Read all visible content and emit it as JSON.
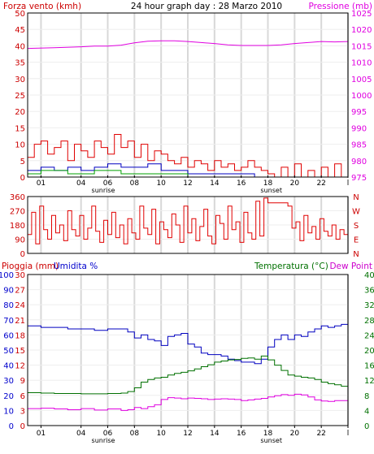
{
  "colors": {
    "red": "#e00000",
    "magenta": "#e000e0",
    "blue": "#0000c0",
    "green": "#007000",
    "darkgreen": "#00a000",
    "label_red": "#cc0000",
    "label_blue": "#0000cc",
    "grid": "#d8d8d8",
    "frame": "#000000"
  },
  "time_ticks": [
    "01",
    "04",
    "06",
    "08",
    "10",
    "12",
    "14",
    "16",
    "18",
    "20",
    "22",
    "l"
  ],
  "sun_labels": {
    "sunrise": "sunrise",
    "sunset": "sunset"
  },
  "chart_data": [
    {
      "type": "line",
      "title": "24 hour graph day : 28 Marzo 2010",
      "left_axis_label": "Forza vento (kmh)",
      "right_axis_label": "Pressione (mb)",
      "left_ticks": [
        "50",
        "45",
        "40",
        "35",
        "30",
        "25",
        "20",
        "15",
        "10",
        "5",
        "0"
      ],
      "right_ticks": [
        "1025",
        "1020",
        "1015",
        "1010",
        "1005",
        "1000",
        "995",
        "990",
        "985",
        "980",
        "975"
      ],
      "ylim_left": [
        0,
        50
      ],
      "ylim_right": [
        975,
        1025
      ],
      "x_range_hours": [
        0,
        24
      ],
      "series": [
        {
          "key": "pressure",
          "color": "magenta",
          "axis": "right",
          "x": [
            0,
            2,
            4,
            5,
            6,
            7,
            8,
            9,
            10,
            11,
            12,
            13,
            14,
            15,
            16,
            17,
            18,
            19,
            20,
            21,
            22,
            23,
            24
          ],
          "y": [
            1014.2,
            1014.4,
            1014.7,
            1014.9,
            1014.9,
            1015.2,
            1015.9,
            1016.4,
            1016.5,
            1016.5,
            1016.3,
            1016,
            1015.7,
            1015.3,
            1015.1,
            1015.1,
            1015.1,
            1015.3,
            1015.7,
            1016,
            1016.3,
            1016.2,
            1016.3
          ]
        },
        {
          "key": "wind_gust",
          "color": "red",
          "axis": "left",
          "x": [
            0,
            0.5,
            1,
            1.5,
            2,
            2.5,
            3,
            3.5,
            4,
            4.5,
            5,
            5.5,
            6,
            6.5,
            7,
            7.5,
            8,
            8.5,
            9,
            9.5,
            10,
            10.5,
            11,
            11.5,
            12,
            12.5,
            13,
            13.5,
            14,
            14.5,
            15,
            15.5,
            16,
            16.5,
            17,
            17.5,
            18,
            18.5,
            19,
            19.5,
            20,
            20.5,
            21,
            21.5,
            22,
            22.5,
            23,
            23.5,
            24
          ],
          "y": [
            6,
            10,
            11,
            7,
            9,
            11,
            5,
            10,
            8,
            6,
            11,
            9,
            7,
            13,
            9,
            11,
            6,
            10,
            5,
            8,
            7,
            5,
            4,
            6,
            3,
            5,
            4,
            2,
            5,
            3,
            4,
            2,
            3,
            5,
            3,
            2,
            1,
            0,
            3,
            0,
            4,
            0,
            2,
            0,
            3,
            0,
            4,
            0,
            2
          ]
        },
        {
          "key": "wind_avg",
          "color": "blue",
          "axis": "left",
          "x": [
            0,
            1,
            2,
            3,
            4,
            5,
            6,
            7,
            8,
            9,
            10,
            11,
            12,
            13,
            14,
            15,
            16,
            17,
            18,
            19,
            20,
            21,
            22,
            23,
            24
          ],
          "y": [
            2,
            3,
            2,
            3,
            2,
            3,
            4,
            3,
            3,
            4,
            2,
            2,
            1,
            1,
            1,
            1,
            1,
            0,
            0,
            0,
            0,
            0,
            0,
            0,
            0
          ]
        },
        {
          "key": "wind_green",
          "color": "darkgreen",
          "axis": "left",
          "x": [
            0,
            1,
            2,
            3,
            4,
            5,
            6,
            7,
            8,
            9,
            10,
            11,
            12,
            13,
            14,
            15,
            16,
            17,
            18,
            19,
            20,
            21,
            22,
            23,
            24
          ],
          "y": [
            1,
            2,
            2,
            1,
            1,
            2,
            2,
            1,
            1,
            1,
            1,
            1,
            0,
            0,
            0,
            0,
            0,
            0,
            0,
            0,
            0,
            0,
            0,
            0,
            0
          ]
        }
      ]
    },
    {
      "type": "line",
      "right_axis_label": "N W S E N",
      "left_ticks": [
        "360",
        "270",
        "180",
        "90",
        "0"
      ],
      "ylim": [
        0,
        360
      ],
      "x_range_hours": [
        0,
        24
      ],
      "series": [
        {
          "key": "wind_direction",
          "color": "red",
          "x": [
            0,
            0.3,
            0.6,
            0.9,
            1.2,
            1.5,
            1.8,
            2.1,
            2.4,
            2.7,
            3,
            3.3,
            3.6,
            3.9,
            4.2,
            4.5,
            4.8,
            5.1,
            5.4,
            5.7,
            6,
            6.3,
            6.6,
            6.9,
            7.2,
            7.5,
            7.8,
            8.1,
            8.4,
            8.7,
            9,
            9.3,
            9.6,
            9.9,
            10.2,
            10.5,
            10.8,
            11.1,
            11.4,
            11.7,
            12,
            12.3,
            12.6,
            12.9,
            13.2,
            13.5,
            13.8,
            14.1,
            14.4,
            14.7,
            15,
            15.3,
            15.6,
            15.9,
            16.2,
            16.5,
            16.8,
            17.1,
            17.4,
            17.7,
            18,
            18.6,
            19.2,
            19.5,
            19.8,
            20.1,
            20.4,
            20.7,
            21,
            21.3,
            21.6,
            21.9,
            22.2,
            22.5,
            22.8,
            23.1,
            23.4,
            23.7,
            24
          ],
          "y": [
            120,
            260,
            60,
            300,
            150,
            90,
            240,
            130,
            180,
            80,
            270,
            150,
            110,
            240,
            90,
            160,
            300,
            140,
            70,
            210,
            120,
            260,
            100,
            180,
            60,
            220,
            130,
            90,
            300,
            160,
            120,
            280,
            60,
            200,
            150,
            100,
            250,
            180,
            70,
            300,
            130,
            220,
            80,
            170,
            280,
            110,
            60,
            240,
            190,
            90,
            300,
            150,
            200,
            70,
            260,
            130,
            90,
            330,
            110,
            350,
            320,
            320,
            320,
            300,
            160,
            200,
            80,
            240,
            130,
            170,
            90,
            220,
            140,
            110,
            180,
            90,
            150,
            120,
            130
          ]
        }
      ]
    },
    {
      "type": "line",
      "left_axis_labels": [
        "Pioggia (mm)",
        "Umidita %"
      ],
      "right_axis_labels": [
        "Temperatura (°C)",
        "Dew Point"
      ],
      "rain_ticks": [
        "30",
        "27",
        "24",
        "21",
        "18",
        "15",
        "12",
        "9",
        "6",
        "3",
        "0"
      ],
      "humidity_ticks": [
        "100",
        "90",
        "80",
        "70",
        "60",
        "50",
        "40",
        "30",
        "20",
        "10",
        "0"
      ],
      "temp_ticks": [
        "40",
        "36",
        "32",
        "28",
        "24",
        "20",
        "16",
        "12",
        "8",
        "4",
        "0"
      ],
      "ylim_rain": [
        0,
        30
      ],
      "ylim_humidity": [
        0,
        100
      ],
      "ylim_temp": [
        0,
        40
      ],
      "x_range_hours": [
        0,
        24
      ],
      "series": [
        {
          "key": "humidity",
          "color": "blue",
          "axis": "humidity",
          "x": [
            0,
            1,
            2,
            3,
            4,
            5,
            6,
            7,
            7.5,
            8,
            8.5,
            9,
            9.5,
            10,
            10.5,
            11,
            11.5,
            12,
            12.5,
            13,
            13.5,
            14,
            14.5,
            15,
            15.5,
            16,
            16.5,
            17,
            17.5,
            18,
            18.5,
            19,
            19.5,
            20,
            20.5,
            21,
            21.5,
            22,
            22.5,
            23,
            23.5,
            24
          ],
          "y": [
            66,
            65,
            65,
            64,
            64,
            63,
            64,
            64,
            62,
            58,
            60,
            57,
            56,
            53,
            59,
            60,
            61,
            54,
            52,
            48,
            47,
            47,
            46,
            44,
            43,
            42,
            42,
            41,
            44,
            52,
            57,
            60,
            57,
            60,
            59,
            62,
            64,
            66,
            65,
            66,
            67,
            69
          ]
        },
        {
          "key": "temperature",
          "color": "green",
          "axis": "temp",
          "x": [
            0,
            1,
            2,
            3,
            4,
            5,
            6,
            7,
            7.5,
            8,
            8.5,
            9,
            9.5,
            10,
            10.5,
            11,
            11.5,
            12,
            12.5,
            13,
            13.5,
            14,
            14.5,
            15,
            15.5,
            16,
            16.5,
            17,
            17.5,
            18,
            18.5,
            19,
            19.5,
            20,
            20.5,
            21,
            21.5,
            22,
            22.5,
            23,
            23.5,
            24
          ],
          "y": [
            8.7,
            8.6,
            8.5,
            8.5,
            8.4,
            8.4,
            8.5,
            8.6,
            9,
            10,
            11.5,
            12.2,
            12.6,
            12.8,
            13.4,
            13.8,
            14.1,
            14.5,
            15,
            15.6,
            16.1,
            16.8,
            17.1,
            17.4,
            17.5,
            17.8,
            17.9,
            17.6,
            18.4,
            17.4,
            16,
            14.6,
            13.4,
            13.1,
            12.8,
            12.6,
            12.2,
            11.5,
            11.1,
            10.8,
            10.4,
            9.9
          ]
        },
        {
          "key": "dew_point",
          "color": "magenta",
          "axis": "temp",
          "x": [
            0,
            1,
            2,
            3,
            4,
            5,
            6,
            7,
            7.5,
            8,
            8.5,
            9,
            9.5,
            10,
            10.5,
            11,
            11.5,
            12,
            12.5,
            13,
            13.5,
            14,
            14.5,
            15,
            15.5,
            16,
            16.5,
            17,
            17.5,
            18,
            18.5,
            19,
            19.5,
            20,
            20.5,
            21,
            21.5,
            22,
            22.5,
            23,
            23.5,
            24
          ],
          "y": [
            4.5,
            4.6,
            4.4,
            4.2,
            4.5,
            4.1,
            4.4,
            4.0,
            4.2,
            4.8,
            4.5,
            5.0,
            5.5,
            6.9,
            7.4,
            7.3,
            7.1,
            7.3,
            7.2,
            7.1,
            6.9,
            7.0,
            7.1,
            7.0,
            6.9,
            6.6,
            6.8,
            7.0,
            7.2,
            7.6,
            7.9,
            8.2,
            8.0,
            8.3,
            8.1,
            7.6,
            6.8,
            6.5,
            6.4,
            6.6,
            6.6,
            6.8
          ]
        },
        {
          "key": "rain",
          "color": "red",
          "axis": "rain",
          "x": [
            0,
            24
          ],
          "y": [
            0,
            0
          ]
        }
      ]
    }
  ]
}
